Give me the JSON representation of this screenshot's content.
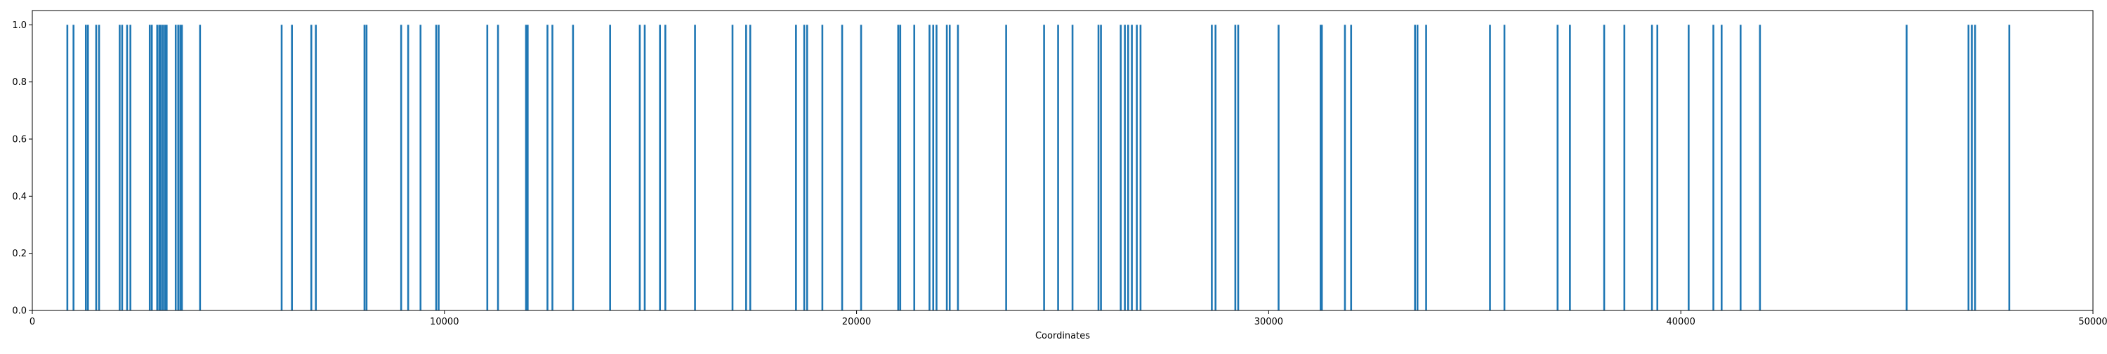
{
  "chart_data": {
    "type": "bar",
    "title": "",
    "xlabel": "Coordinates",
    "ylabel": "",
    "xlim": [
      0,
      50000
    ],
    "ylim": [
      0,
      1.05
    ],
    "x_ticks": [
      "0",
      "10000",
      "20000",
      "30000",
      "40000",
      "50000"
    ],
    "x_tick_values": [
      0,
      10000,
      20000,
      30000,
      40000,
      50000
    ],
    "y_ticks": [
      "0.0",
      "0.2",
      "0.4",
      "0.6",
      "0.8",
      "1.0"
    ],
    "y_tick_values": [
      0.0,
      0.2,
      0.4,
      0.6,
      0.8,
      1.0
    ],
    "bar_color": "#1f77b4",
    "grid": false,
    "x": [
      850,
      1000,
      1300,
      1350,
      1550,
      1620,
      2120,
      2180,
      2300,
      2380,
      2850,
      2900,
      3030,
      3080,
      3120,
      3170,
      3220,
      3260,
      3480,
      3540,
      3590,
      3630,
      4070,
      6050,
      6300,
      6770,
      6880,
      8060,
      8110,
      8950,
      9120,
      9420,
      9800,
      9860,
      11040,
      11300,
      11980,
      12020,
      12500,
      12620,
      13120,
      14020,
      14740,
      14860,
      15230,
      15360,
      16080,
      16990,
      17320,
      17420,
      18530,
      18730,
      18800,
      19170,
      19650,
      20110,
      21010,
      21060,
      21400,
      21770,
      21860,
      21940,
      22190,
      22260,
      22460,
      23630,
      24550,
      24890,
      25240,
      25870,
      25930,
      26410,
      26510,
      26590,
      26680,
      26800,
      26890,
      28620,
      28710,
      29190,
      29260,
      30240,
      31260,
      31290,
      31850,
      32000,
      33550,
      33610,
      33820,
      35370,
      35720,
      37010,
      37310,
      38140,
      38630,
      39300,
      39430,
      40190,
      40790,
      40990,
      41450,
      41920,
      45480,
      46980,
      47060,
      47140,
      47970
    ],
    "values": [
      1,
      1,
      1,
      1,
      1,
      1,
      1,
      1,
      1,
      1,
      1,
      1,
      1,
      1,
      1,
      1,
      1,
      1,
      1,
      1,
      1,
      1,
      1,
      1,
      1,
      1,
      1,
      1,
      1,
      1,
      1,
      1,
      1,
      1,
      1,
      1,
      1,
      1,
      1,
      1,
      1,
      1,
      1,
      1,
      1,
      1,
      1,
      1,
      1,
      1,
      1,
      1,
      1,
      1,
      1,
      1,
      1,
      1,
      1,
      1,
      1,
      1,
      1,
      1,
      1,
      1,
      1,
      1,
      1,
      1,
      1,
      1,
      1,
      1,
      1,
      1,
      1,
      1,
      1,
      1,
      1,
      1,
      1,
      1,
      1,
      1,
      1,
      1,
      1,
      1,
      1,
      1,
      1,
      1,
      1,
      1,
      1,
      1,
      1,
      1,
      1,
      1,
      1,
      1,
      1,
      1,
      1
    ]
  }
}
